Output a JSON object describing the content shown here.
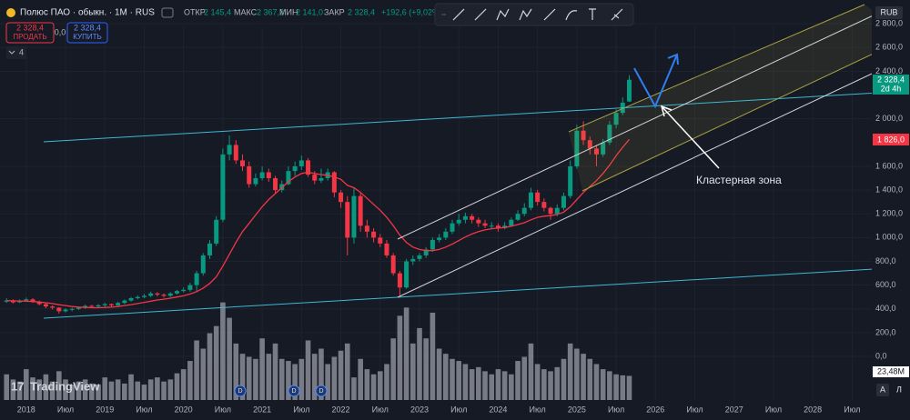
{
  "ui": {
    "symbol": "Полюс ПАО · обыкн. · 1М · RUS",
    "open_label": "ОТКР",
    "open": "2 145,4",
    "high_label": "МАКС",
    "high": "2 367,2",
    "low_label": "МИН",
    "low": "2 141,0",
    "close_label": "ЗАКР",
    "close": "2 328,4",
    "change": "+192,6 (+9,02%)",
    "sell_price": "2 328,4",
    "sell": "ПРОДАТЬ",
    "spread": "0,0",
    "buy_price": "2 328,4",
    "buy": "КУПИТЬ",
    "indicators": "4",
    "currency": "RUB",
    "last_price": "2 328,4",
    "countdown": "2d 4h",
    "ma_label": "1 826,0",
    "volume_label": "23,48M",
    "logo": "TradingView",
    "auto": "A",
    "log": "Л",
    "dividend": "D"
  },
  "chart_data": {
    "type": "candlestick",
    "annotation": "Кластерная зона",
    "up_color": "#089981",
    "down_color": "#f23645",
    "ma_color": "#f23645",
    "volume_color": "#8a8d96",
    "grid": true,
    "xlim": [
      "2017-09",
      "2028-10"
    ],
    "ylim": [
      -367,
      3000
    ],
    "yticks": [
      {
        "value": 0,
        "label": "0,0"
      },
      {
        "value": 200,
        "label": "200,0"
      },
      {
        "value": 400,
        "label": "400,0"
      },
      {
        "value": 600,
        "label": "600,0"
      },
      {
        "value": 800,
        "label": "800,0"
      },
      {
        "value": 1000,
        "label": "1 000,0"
      },
      {
        "value": 1200,
        "label": "1 200,0"
      },
      {
        "value": 1400,
        "label": "1 400,0"
      },
      {
        "value": 1600,
        "label": "1 600,0"
      },
      {
        "value": 2000,
        "label": "2 000,0"
      },
      {
        "value": 2400,
        "label": "2 400,0"
      },
      {
        "value": 2600,
        "label": "2 600,0"
      },
      {
        "value": 2800,
        "label": "2 800,0"
      }
    ],
    "xticks": [
      {
        "value": "2018-01",
        "label": "2018"
      },
      {
        "value": "2018-07",
        "label": "Июл"
      },
      {
        "value": "2019-01",
        "label": "2019"
      },
      {
        "value": "2019-07",
        "label": "Июл"
      },
      {
        "value": "2020-01",
        "label": "2020"
      },
      {
        "value": "2020-07",
        "label": "Июл"
      },
      {
        "value": "2021-01",
        "label": "2021"
      },
      {
        "value": "2021-07",
        "label": "Июл"
      },
      {
        "value": "2022-01",
        "label": "2022"
      },
      {
        "value": "2022-07",
        "label": "Июл"
      },
      {
        "value": "2023-01",
        "label": "2023"
      },
      {
        "value": "2023-07",
        "label": "Июл"
      },
      {
        "value": "2024-01",
        "label": "2024"
      },
      {
        "value": "2024-07",
        "label": "Июл"
      },
      {
        "value": "2025-01",
        "label": "2025"
      },
      {
        "value": "2025-07",
        "label": "Июл"
      },
      {
        "value": "2026-01",
        "label": "2026"
      },
      {
        "value": "2026-07",
        "label": "Июл"
      },
      {
        "value": "2027-01",
        "label": "2027"
      },
      {
        "value": "2027-07",
        "label": "Июл"
      },
      {
        "value": "2028-01",
        "label": "2028"
      },
      {
        "value": "2028-07",
        "label": "Июл"
      }
    ],
    "x": [
      "2017-10",
      "2017-11",
      "2017-12",
      "2018-01",
      "2018-02",
      "2018-03",
      "2018-04",
      "2018-05",
      "2018-06",
      "2018-07",
      "2018-08",
      "2018-09",
      "2018-10",
      "2018-11",
      "2018-12",
      "2019-01",
      "2019-02",
      "2019-03",
      "2019-04",
      "2019-05",
      "2019-06",
      "2019-07",
      "2019-08",
      "2019-09",
      "2019-10",
      "2019-11",
      "2019-12",
      "2020-01",
      "2020-02",
      "2020-03",
      "2020-04",
      "2020-05",
      "2020-06",
      "2020-07",
      "2020-08",
      "2020-09",
      "2020-10",
      "2020-11",
      "2020-12",
      "2021-01",
      "2021-02",
      "2021-03",
      "2021-04",
      "2021-05",
      "2021-06",
      "2021-07",
      "2021-08",
      "2021-09",
      "2021-10",
      "2021-11",
      "2021-12",
      "2022-01",
      "2022-02",
      "2022-03",
      "2022-04",
      "2022-05",
      "2022-06",
      "2022-07",
      "2022-08",
      "2022-09",
      "2022-10",
      "2022-11",
      "2022-12",
      "2023-01",
      "2023-02",
      "2023-03",
      "2023-04",
      "2023-05",
      "2023-06",
      "2023-07",
      "2023-08",
      "2023-09",
      "2023-10",
      "2023-11",
      "2023-12",
      "2024-01",
      "2024-02",
      "2024-03",
      "2024-04",
      "2024-05",
      "2024-06",
      "2024-07",
      "2024-08",
      "2024-09",
      "2024-10",
      "2024-11",
      "2024-12",
      "2025-01",
      "2025-02",
      "2025-03",
      "2025-04",
      "2025-05",
      "2025-06",
      "2025-07",
      "2025-08",
      "2025-09"
    ],
    "ohlc": [
      [
        460,
        490,
        450,
        470
      ],
      [
        470,
        480,
        445,
        455
      ],
      [
        455,
        480,
        450,
        470
      ],
      [
        470,
        495,
        460,
        480
      ],
      [
        480,
        490,
        450,
        460
      ],
      [
        460,
        470,
        430,
        440
      ],
      [
        440,
        450,
        405,
        420
      ],
      [
        420,
        430,
        395,
        410
      ],
      [
        410,
        415,
        360,
        380
      ],
      [
        380,
        405,
        370,
        395
      ],
      [
        395,
        410,
        380,
        400
      ],
      [
        400,
        420,
        390,
        410
      ],
      [
        410,
        435,
        400,
        425
      ],
      [
        425,
        435,
        410,
        420
      ],
      [
        420,
        440,
        410,
        430
      ],
      [
        430,
        450,
        420,
        440
      ],
      [
        440,
        445,
        420,
        430
      ],
      [
        430,
        460,
        425,
        450
      ],
      [
        450,
        480,
        440,
        470
      ],
      [
        470,
        500,
        460,
        490
      ],
      [
        490,
        515,
        480,
        500
      ],
      [
        500,
        525,
        490,
        510
      ],
      [
        510,
        545,
        500,
        530
      ],
      [
        530,
        540,
        505,
        520
      ],
      [
        520,
        530,
        495,
        510
      ],
      [
        510,
        540,
        500,
        530
      ],
      [
        530,
        560,
        520,
        550
      ],
      [
        550,
        580,
        540,
        560
      ],
      [
        560,
        620,
        545,
        600
      ],
      [
        600,
        720,
        540,
        700
      ],
      [
        700,
        870,
        680,
        850
      ],
      [
        850,
        980,
        820,
        950
      ],
      [
        950,
        1180,
        930,
        1150
      ],
      [
        1150,
        1750,
        1130,
        1700
      ],
      [
        1700,
        1860,
        1650,
        1780
      ],
      [
        1780,
        1820,
        1620,
        1650
      ],
      [
        1650,
        1700,
        1560,
        1600
      ],
      [
        1600,
        1640,
        1420,
        1450
      ],
      [
        1450,
        1540,
        1430,
        1500
      ],
      [
        1500,
        1600,
        1480,
        1550
      ],
      [
        1550,
        1580,
        1470,
        1500
      ],
      [
        1500,
        1520,
        1370,
        1400
      ],
      [
        1400,
        1480,
        1380,
        1450
      ],
      [
        1450,
        1600,
        1440,
        1560
      ],
      [
        1560,
        1640,
        1520,
        1600
      ],
      [
        1600,
        1690,
        1570,
        1650
      ],
      [
        1650,
        1670,
        1510,
        1530
      ],
      [
        1530,
        1560,
        1450,
        1480
      ],
      [
        1480,
        1580,
        1460,
        1500
      ],
      [
        1500,
        1580,
        1480,
        1550
      ],
      [
        1550,
        1560,
        1340,
        1380
      ],
      [
        1380,
        1400,
        1250,
        1300
      ],
      [
        1300,
        1350,
        850,
        1000
      ],
      [
        1000,
        1420,
        950,
        1350
      ],
      [
        1350,
        1380,
        1050,
        1100
      ],
      [
        1100,
        1150,
        1000,
        1050
      ],
      [
        1050,
        1080,
        960,
        1000
      ],
      [
        1000,
        1030,
        920,
        950
      ],
      [
        950,
        980,
        830,
        850
      ],
      [
        850,
        870,
        680,
        700
      ],
      [
        700,
        720,
        500,
        580
      ],
      [
        580,
        820,
        570,
        800
      ],
      [
        800,
        850,
        770,
        820
      ],
      [
        820,
        870,
        800,
        850
      ],
      [
        850,
        920,
        830,
        900
      ],
      [
        900,
        1000,
        880,
        980
      ],
      [
        980,
        1030,
        960,
        1000
      ],
      [
        1000,
        1080,
        980,
        1050
      ],
      [
        1050,
        1150,
        1030,
        1120
      ],
      [
        1120,
        1200,
        1100,
        1150
      ],
      [
        1150,
        1210,
        1120,
        1180
      ],
      [
        1180,
        1200,
        1120,
        1150
      ],
      [
        1150,
        1170,
        1090,
        1120
      ],
      [
        1120,
        1150,
        1080,
        1100
      ],
      [
        1100,
        1130,
        1070,
        1100
      ],
      [
        1100,
        1120,
        1050,
        1080
      ],
      [
        1080,
        1130,
        1070,
        1100
      ],
      [
        1100,
        1170,
        1090,
        1150
      ],
      [
        1150,
        1230,
        1140,
        1200
      ],
      [
        1200,
        1290,
        1180,
        1250
      ],
      [
        1250,
        1420,
        1230,
        1380
      ],
      [
        1380,
        1400,
        1270,
        1300
      ],
      [
        1300,
        1330,
        1220,
        1250
      ],
      [
        1250,
        1260,
        1150,
        1200
      ],
      [
        1200,
        1280,
        1180,
        1250
      ],
      [
        1250,
        1380,
        1230,
        1350
      ],
      [
        1350,
        1650,
        1330,
        1600
      ],
      [
        1600,
        1950,
        1580,
        1900
      ],
      [
        1900,
        1980,
        1780,
        1820
      ],
      [
        1820,
        1850,
        1700,
        1750
      ],
      [
        1750,
        1780,
        1600,
        1700
      ],
      [
        1700,
        1830,
        1680,
        1800
      ],
      [
        1800,
        1980,
        1780,
        1950
      ],
      [
        1950,
        2080,
        1920,
        2050
      ],
      [
        2050,
        2180,
        2030,
        2135.8
      ],
      [
        2145.4,
        2367.2,
        2141.0,
        2328.4
      ]
    ],
    "ma": [
      470,
      468,
      466,
      465,
      462,
      458,
      452,
      445,
      435,
      428,
      420,
      415,
      412,
      410,
      410,
      412,
      415,
      420,
      428,
      436,
      445,
      455,
      465,
      475,
      482,
      490,
      500,
      510,
      525,
      545,
      575,
      615,
      670,
      760,
      860,
      960,
      1050,
      1120,
      1190,
      1260,
      1320,
      1370,
      1420,
      1470,
      1510,
      1540,
      1550,
      1540,
      1530,
      1525,
      1510,
      1490,
      1440,
      1420,
      1380,
      1330,
      1280,
      1230,
      1170,
      1100,
      1020,
      960,
      920,
      900,
      890,
      890,
      900,
      920,
      945,
      975,
      1005,
      1030,
      1050,
      1065,
      1075,
      1080,
      1085,
      1095,
      1110,
      1125,
      1150,
      1170,
      1180,
      1185,
      1195,
      1215,
      1260,
      1320,
      1380,
      1430,
      1480,
      1540,
      1610,
      1690,
      1760,
      1826
    ],
    "volume": [
      25,
      20,
      18,
      30,
      22,
      20,
      25,
      18,
      28,
      20,
      15,
      18,
      20,
      16,
      15,
      22,
      18,
      20,
      16,
      25,
      18,
      15,
      20,
      22,
      18,
      20,
      26,
      30,
      38,
      58,
      50,
      65,
      72,
      95,
      80,
      55,
      45,
      42,
      40,
      60,
      45,
      55,
      40,
      38,
      35,
      40,
      58,
      45,
      50,
      35,
      42,
      48,
      55,
      22,
      40,
      30,
      25,
      28,
      35,
      60,
      82,
      90,
      55,
      70,
      60,
      85,
      50,
      45,
      40,
      38,
      35,
      30,
      32,
      28,
      25,
      30,
      28,
      25,
      38,
      42,
      55,
      35,
      30,
      28,
      32,
      40,
      55,
      50,
      45,
      40,
      35,
      30,
      28,
      25,
      24,
      23.48
    ]
  }
}
